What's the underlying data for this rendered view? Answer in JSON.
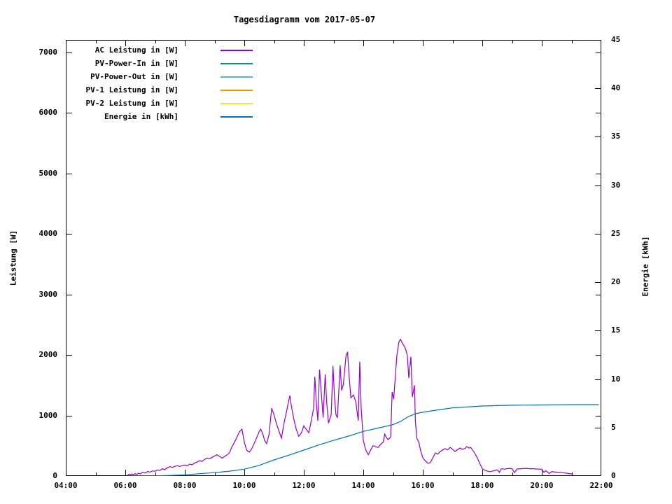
{
  "title": "Tagesdiagramm vom 2017-05-07",
  "legend": {
    "items": [
      {
        "label": "AC Leistung in [W]",
        "color": "#9400d3"
      },
      {
        "label": "PV-Power-In in [W]",
        "color": "#009e73"
      },
      {
        "label": "PV-Power-Out in [W]",
        "color": "#56b4e9"
      },
      {
        "label": "PV-1 Leistung in [W]",
        "color": "#e69f00"
      },
      {
        "label": "PV-2 Leistung in [W]",
        "color": "#f0e442"
      },
      {
        "label": "Energie in [kWh]",
        "color": "#0072b2"
      }
    ]
  },
  "chart_data": {
    "type": "line",
    "title": "Tagesdiagramm vom 2017-05-07",
    "grid": false,
    "legend_position": "top-left-inside",
    "x": {
      "range": [
        4,
        22
      ],
      "ticks": [
        4,
        6,
        8,
        10,
        12,
        14,
        16,
        18,
        20,
        22
      ],
      "tick_labels": [
        "04:00",
        "06:00",
        "08:00",
        "10:00",
        "12:00",
        "14:00",
        "16:00",
        "18:00",
        "20:00",
        "22:00"
      ],
      "minor_ticks": [
        5,
        7,
        9,
        11,
        13,
        15,
        17,
        19,
        21
      ]
    },
    "y_left": {
      "label": "Leistung [W]",
      "max": 7208,
      "ticks": [
        0,
        1000,
        2000,
        3000,
        4000,
        5000,
        6000,
        7000
      ]
    },
    "y_right": {
      "label": "Energie [kWh]",
      "max": 45,
      "ticks": [
        0,
        5,
        10,
        15,
        20,
        25,
        30,
        35,
        40,
        45
      ]
    },
    "series": [
      {
        "name": "AC Leistung in [W]",
        "color": "#9400d3",
        "axis": "left",
        "points": [
          [
            6.08,
            10
          ],
          [
            6.13,
            30
          ],
          [
            6.17,
            15
          ],
          [
            6.22,
            35
          ],
          [
            6.27,
            20
          ],
          [
            6.33,
            40
          ],
          [
            6.38,
            25
          ],
          [
            6.45,
            45
          ],
          [
            6.5,
            35
          ],
          [
            6.58,
            60
          ],
          [
            6.67,
            50
          ],
          [
            6.75,
            75
          ],
          [
            6.83,
            65
          ],
          [
            6.92,
            85
          ],
          [
            7.0,
            78
          ],
          [
            7.08,
            100
          ],
          [
            7.17,
            92
          ],
          [
            7.25,
            120
          ],
          [
            7.33,
            105
          ],
          [
            7.42,
            140
          ],
          [
            7.5,
            155
          ],
          [
            7.58,
            142
          ],
          [
            7.67,
            160
          ],
          [
            7.75,
            170
          ],
          [
            7.83,
            158
          ],
          [
            7.92,
            175
          ],
          [
            8.0,
            182
          ],
          [
            8.08,
            170
          ],
          [
            8.17,
            195
          ],
          [
            8.25,
            185
          ],
          [
            8.33,
            215
          ],
          [
            8.42,
            232
          ],
          [
            8.5,
            255
          ],
          [
            8.58,
            242
          ],
          [
            8.67,
            275
          ],
          [
            8.75,
            295
          ],
          [
            8.83,
            282
          ],
          [
            8.92,
            310
          ],
          [
            9.0,
            332
          ],
          [
            9.08,
            350
          ],
          [
            9.17,
            325
          ],
          [
            9.25,
            295
          ],
          [
            9.33,
            322
          ],
          [
            9.42,
            348
          ],
          [
            9.5,
            385
          ],
          [
            9.58,
            480
          ],
          [
            9.67,
            560
          ],
          [
            9.75,
            640
          ],
          [
            9.83,
            725
          ],
          [
            9.92,
            775
          ],
          [
            10.0,
            560
          ],
          [
            10.08,
            425
          ],
          [
            10.17,
            395
          ],
          [
            10.25,
            450
          ],
          [
            10.33,
            535
          ],
          [
            10.42,
            640
          ],
          [
            10.5,
            735
          ],
          [
            10.55,
            775
          ],
          [
            10.62,
            700
          ],
          [
            10.68,
            590
          ],
          [
            10.75,
            535
          ],
          [
            10.83,
            685
          ],
          [
            10.92,
            1120
          ],
          [
            11.0,
            1010
          ],
          [
            11.08,
            865
          ],
          [
            11.17,
            735
          ],
          [
            11.25,
            625
          ],
          [
            11.33,
            860
          ],
          [
            11.42,
            1065
          ],
          [
            11.53,
            1330
          ],
          [
            11.58,
            1165
          ],
          [
            11.67,
            925
          ],
          [
            11.75,
            765
          ],
          [
            11.83,
            655
          ],
          [
            11.92,
            715
          ],
          [
            12.0,
            830
          ],
          [
            12.08,
            772
          ],
          [
            12.17,
            715
          ],
          [
            12.25,
            912
          ],
          [
            12.33,
            1115
          ],
          [
            12.37,
            1640
          ],
          [
            12.42,
            1215
          ],
          [
            12.47,
            915
          ],
          [
            12.53,
            1760
          ],
          [
            12.58,
            1415
          ],
          [
            12.65,
            965
          ],
          [
            12.72,
            1680
          ],
          [
            12.77,
            1215
          ],
          [
            12.83,
            875
          ],
          [
            12.92,
            1015
          ],
          [
            12.98,
            1820
          ],
          [
            13.03,
            1315
          ],
          [
            13.08,
            1015
          ],
          [
            13.13,
            962
          ],
          [
            13.22,
            1830
          ],
          [
            13.27,
            1415
          ],
          [
            13.33,
            1515
          ],
          [
            13.42,
            1990
          ],
          [
            13.47,
            2050
          ],
          [
            13.53,
            1615
          ],
          [
            13.58,
            1295
          ],
          [
            13.67,
            1340
          ],
          [
            13.75,
            1215
          ],
          [
            13.83,
            915
          ],
          [
            13.88,
            1890
          ],
          [
            13.93,
            1115
          ],
          [
            14.0,
            590
          ],
          [
            14.08,
            432
          ],
          [
            14.17,
            352
          ],
          [
            14.25,
            432
          ],
          [
            14.33,
            502
          ],
          [
            14.42,
            482
          ],
          [
            14.5,
            472
          ],
          [
            14.58,
            522
          ],
          [
            14.67,
            562
          ],
          [
            14.72,
            692
          ],
          [
            14.77,
            642
          ],
          [
            14.83,
            602
          ],
          [
            14.92,
            642
          ],
          [
            14.97,
            1390
          ],
          [
            15.02,
            1272
          ],
          [
            15.07,
            1600
          ],
          [
            15.13,
            2000
          ],
          [
            15.2,
            2220
          ],
          [
            15.25,
            2260
          ],
          [
            15.3,
            2205
          ],
          [
            15.37,
            2150
          ],
          [
            15.42,
            2100
          ],
          [
            15.48,
            1990
          ],
          [
            15.53,
            1620
          ],
          [
            15.6,
            1970
          ],
          [
            15.65,
            1305
          ],
          [
            15.72,
            1500
          ],
          [
            15.75,
            905
          ],
          [
            15.8,
            625
          ],
          [
            15.87,
            552
          ],
          [
            15.92,
            432
          ],
          [
            16.0,
            302
          ],
          [
            16.08,
            252
          ],
          [
            16.17,
            212
          ],
          [
            16.25,
            218
          ],
          [
            16.33,
            292
          ],
          [
            16.42,
            382
          ],
          [
            16.5,
            362
          ],
          [
            16.58,
            402
          ],
          [
            16.67,
            432
          ],
          [
            16.75,
            452
          ],
          [
            16.83,
            432
          ],
          [
            16.92,
            472
          ],
          [
            17.0,
            442
          ],
          [
            17.08,
            405
          ],
          [
            17.17,
            435
          ],
          [
            17.25,
            462
          ],
          [
            17.33,
            442
          ],
          [
            17.42,
            455
          ],
          [
            17.48,
            487
          ],
          [
            17.55,
            462
          ],
          [
            17.6,
            476
          ],
          [
            17.67,
            432
          ],
          [
            17.75,
            372
          ],
          [
            17.83,
            302
          ],
          [
            17.92,
            202
          ],
          [
            18.0,
            122
          ],
          [
            18.08,
            96
          ],
          [
            18.17,
            82
          ],
          [
            18.25,
            70
          ],
          [
            18.33,
            80
          ],
          [
            18.42,
            92
          ],
          [
            18.5,
            102
          ],
          [
            18.58,
            60
          ],
          [
            18.62,
            112
          ],
          [
            18.67,
            120
          ],
          [
            18.75,
            112
          ],
          [
            18.83,
            122
          ],
          [
            18.92,
            126
          ],
          [
            19.0,
            120
          ],
          [
            19.08,
            56
          ],
          [
            19.17,
            116
          ],
          [
            19.33,
            122
          ],
          [
            19.5,
            126
          ],
          [
            19.58,
            120
          ],
          [
            19.67,
            122
          ],
          [
            19.83,
            116
          ],
          [
            20.0,
            112
          ],
          [
            20.07,
            60
          ],
          [
            20.13,
            88
          ],
          [
            20.25,
            42
          ],
          [
            20.33,
            72
          ],
          [
            20.5,
            62
          ],
          [
            20.67,
            56
          ],
          [
            20.83,
            46
          ],
          [
            21.0,
            36
          ],
          [
            21.05,
            8
          ]
        ]
      },
      {
        "name": "PV-Power-In in [W]",
        "color": "#009e73",
        "axis": "left",
        "points": []
      },
      {
        "name": "PV-Power-Out in [W]",
        "color": "#56b4e9",
        "axis": "left",
        "points": []
      },
      {
        "name": "PV-1 Leistung in [W]",
        "color": "#e69f00",
        "axis": "left",
        "points": []
      },
      {
        "name": "PV-2 Leistung in [W]",
        "color": "#f0e442",
        "axis": "left",
        "points": []
      },
      {
        "name": "Energie in [kWh]",
        "color": "#0072b2",
        "axis": "right",
        "points": [
          [
            6.1,
            0.0
          ],
          [
            6.5,
            0.01
          ],
          [
            7.0,
            0.02
          ],
          [
            7.5,
            0.06
          ],
          [
            8.0,
            0.12
          ],
          [
            8.5,
            0.24
          ],
          [
            9.0,
            0.35
          ],
          [
            9.5,
            0.5
          ],
          [
            10.0,
            0.7
          ],
          [
            10.5,
            1.1
          ],
          [
            11.0,
            1.66
          ],
          [
            11.5,
            2.15
          ],
          [
            12.0,
            2.67
          ],
          [
            12.5,
            3.2
          ],
          [
            13.0,
            3.68
          ],
          [
            13.5,
            4.12
          ],
          [
            14.0,
            4.6
          ],
          [
            14.5,
            4.95
          ],
          [
            15.0,
            5.3
          ],
          [
            15.25,
            5.62
          ],
          [
            15.5,
            6.1
          ],
          [
            15.75,
            6.43
          ],
          [
            16.0,
            6.58
          ],
          [
            16.5,
            6.82
          ],
          [
            17.0,
            7.03
          ],
          [
            17.5,
            7.12
          ],
          [
            18.0,
            7.22
          ],
          [
            18.5,
            7.27
          ],
          [
            19.0,
            7.3
          ],
          [
            19.5,
            7.32
          ],
          [
            20.0,
            7.33
          ],
          [
            20.5,
            7.35
          ],
          [
            21.0,
            7.36
          ],
          [
            21.5,
            7.37
          ],
          [
            21.92,
            7.37
          ]
        ]
      }
    ]
  }
}
